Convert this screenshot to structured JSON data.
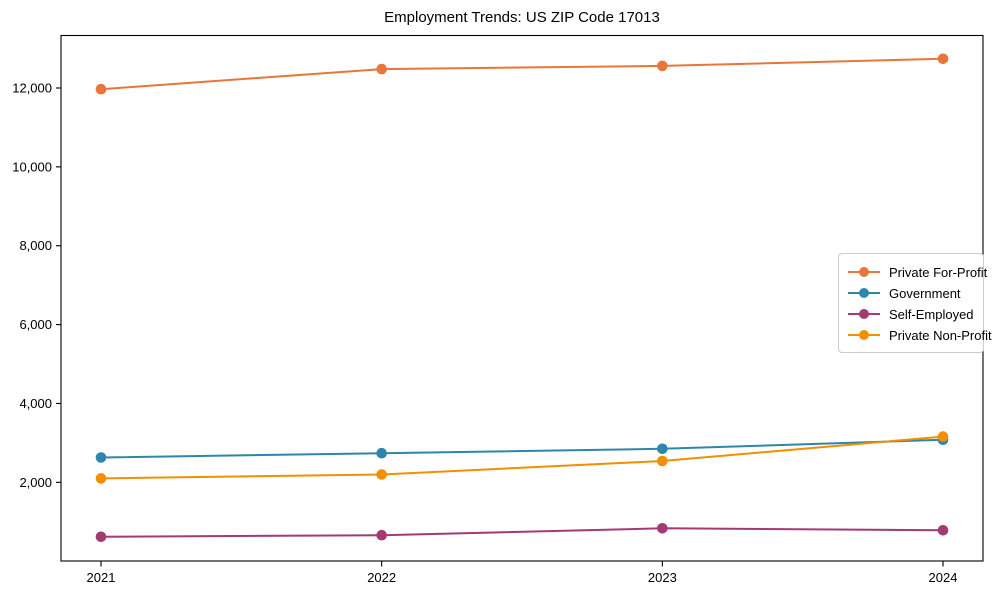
{
  "title": "Employment Trends: US ZIP Code 17013",
  "chart_data": {
    "type": "line",
    "title": "Employment Trends: US ZIP Code 17013",
    "x": [
      "2021",
      "2022",
      "2023",
      "2024"
    ],
    "series": [
      {
        "name": "Private For-Profit",
        "color": "#E8763B",
        "values": [
          11970,
          12480,
          12560,
          12740
        ]
      },
      {
        "name": "Government",
        "color": "#2E86AB",
        "values": [
          2630,
          2740,
          2850,
          3080
        ]
      },
      {
        "name": "Self-Employed",
        "color": "#A23B72",
        "values": [
          620,
          660,
          835,
          785
        ]
      },
      {
        "name": "Private Non-Profit",
        "color": "#F18F01",
        "values": [
          2100,
          2200,
          2540,
          3160
        ]
      }
    ],
    "xlabel": "",
    "ylabel": "",
    "yticks": [
      2000,
      4000,
      6000,
      8000,
      10000,
      12000
    ],
    "ytick_labels": [
      "2,000",
      "4,000",
      "6,000",
      "8,000",
      "10,000",
      "12,000"
    ],
    "ylim": [
      0,
      13350
    ],
    "grid": false,
    "legend_position": "center-right",
    "marker": "circle",
    "axis_color": "#000000"
  }
}
